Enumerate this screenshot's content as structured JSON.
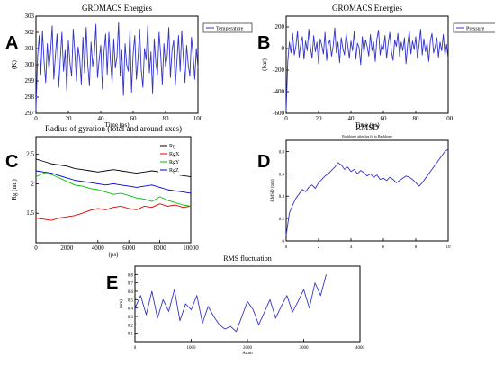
{
  "panels": [
    "A",
    "B",
    "C",
    "D",
    "E"
  ],
  "chart_data": [
    {
      "type": "line",
      "panel": "A",
      "title": "GROMACS Energies",
      "xlabel": "Time (ps)",
      "ylabel": "(K)",
      "xlim": [
        0,
        100
      ],
      "ylim": [
        297,
        303
      ],
      "xticks": [
        0,
        20,
        40,
        60,
        80,
        100
      ],
      "yticks": [
        297,
        298,
        299,
        300,
        301,
        302,
        303
      ],
      "legend_position": "top-right",
      "series": [
        {
          "name": "Temperature",
          "color": "#3333cc",
          "x": [
            0,
            1,
            2,
            3,
            4,
            5,
            6,
            7,
            8,
            9,
            10,
            11,
            12,
            13,
            14,
            15,
            16,
            17,
            18,
            19,
            20,
            21,
            22,
            23,
            24,
            25,
            26,
            27,
            28,
            29,
            30,
            31,
            32,
            33,
            34,
            35,
            36,
            37,
            38,
            39,
            40,
            41,
            42,
            43,
            44,
            45,
            46,
            47,
            48,
            49,
            50,
            51,
            52,
            53,
            54,
            55,
            56,
            57,
            58,
            59,
            60,
            61,
            62,
            63,
            64,
            65,
            66,
            67,
            68,
            69,
            70,
            71,
            72,
            73,
            74,
            75,
            76,
            77,
            78,
            79,
            80,
            81,
            82,
            83,
            84,
            85,
            86,
            87,
            88,
            89,
            90,
            91,
            92,
            93,
            94,
            95,
            96,
            97,
            98,
            99,
            100
          ],
          "y": [
            297.2,
            300.5,
            301.8,
            299.4,
            302.1,
            300.2,
            298.9,
            301.3,
            299.7,
            300.8,
            302.4,
            299.1,
            300.6,
            301.9,
            298.6,
            300.3,
            302.0,
            299.6,
            300.9,
            298.4,
            301.5,
            300.1,
            299.3,
            302.2,
            300.7,
            299.0,
            301.1,
            300.4,
            298.8,
            301.7,
            299.5,
            302.3,
            300.0,
            298.7,
            301.4,
            299.9,
            300.6,
            302.5,
            299.2,
            300.3,
            301.2,
            298.5,
            300.8,
            301.9,
            299.4,
            302.0,
            300.2,
            298.9,
            301.6,
            299.8,
            300.5,
            302.6,
            299.3,
            300.9,
            298.1,
            301.3,
            300.0,
            299.6,
            302.1,
            298.3,
            300.7,
            301.8,
            299.1,
            300.4,
            302.2,
            299.7,
            298.6,
            301.0,
            300.3,
            302.4,
            299.5,
            300.8,
            298.2,
            301.6,
            300.1,
            299.4,
            302.0,
            300.6,
            298.8,
            301.3,
            299.9,
            300.5,
            302.3,
            299.2,
            300.9,
            301.5,
            298.7,
            300.2,
            301.8,
            299.6,
            302.1,
            300.4,
            298.9,
            301.2,
            300.0,
            299.3,
            301.7,
            300.6,
            299.1,
            301.0,
            299.8
          ]
        }
      ]
    },
    {
      "type": "line",
      "panel": "B",
      "title": "GROMACS Energies",
      "xlabel": "Time (ps)",
      "ylabel": "(bar)",
      "xlim": [
        0,
        100
      ],
      "ylim": [
        -600,
        300
      ],
      "xticks": [
        0,
        20,
        40,
        60,
        80,
        100
      ],
      "yticks": [
        -600,
        -400,
        -200,
        0,
        200
      ],
      "legend_position": "top-right",
      "series": [
        {
          "name": "Pressure",
          "color": "#3333cc",
          "x": [
            0,
            1,
            2,
            3,
            4,
            5,
            6,
            7,
            8,
            9,
            10,
            11,
            12,
            13,
            14,
            15,
            16,
            17,
            18,
            19,
            20,
            21,
            22,
            23,
            24,
            25,
            26,
            27,
            28,
            29,
            30,
            31,
            32,
            33,
            34,
            35,
            36,
            37,
            38,
            39,
            40,
            41,
            42,
            43,
            44,
            45,
            46,
            47,
            48,
            49,
            50,
            51,
            52,
            53,
            54,
            55,
            56,
            57,
            58,
            59,
            60,
            61,
            62,
            63,
            64,
            65,
            66,
            67,
            68,
            69,
            70,
            71,
            72,
            73,
            74,
            75,
            76,
            77,
            78,
            79,
            80,
            81,
            82,
            83,
            84,
            85,
            86,
            87,
            88,
            89,
            90,
            91,
            92,
            93,
            94,
            95,
            96,
            97,
            98,
            99,
            100
          ],
          "y": [
            -580,
            -120,
            60,
            -40,
            140,
            -60,
            20,
            160,
            -80,
            40,
            110,
            -100,
            70,
            -20,
            180,
            10,
            -90,
            120,
            -30,
            60,
            -140,
            90,
            30,
            -50,
            150,
            -110,
            40,
            80,
            -70,
            20,
            190,
            -40,
            60,
            -130,
            100,
            0,
            -60,
            140,
            30,
            -90,
            70,
            -20,
            160,
            -100,
            50,
            10,
            -150,
            110,
            -40,
            80,
            20,
            -70,
            130,
            -20,
            60,
            -120,
            90,
            170,
            -60,
            40,
            -10,
            120,
            -90,
            50,
            150,
            -30,
            -110,
            80,
            20,
            140,
            -70,
            60,
            -20,
            100,
            -140,
            40,
            160,
            -50,
            70,
            -10,
            110,
            -90,
            30,
            180,
            -60,
            90,
            -30,
            50,
            -120,
            70,
            140,
            -40,
            20,
            100,
            -80,
            60,
            -20,
            130,
            -60,
            40,
            -100
          ]
        }
      ]
    },
    {
      "type": "line",
      "panel": "C",
      "title": "Radius of gyration (total and around axes)",
      "xlabel": "(ps)",
      "ylabel": "Rg (nm)",
      "xlim": [
        0,
        10000
      ],
      "ylim": [
        1.0,
        2.8
      ],
      "xticks": [
        0,
        2000,
        4000,
        6000,
        8000,
        10000
      ],
      "yticks": [
        1.5,
        2.0,
        2.5
      ],
      "legend_position": "top-right",
      "series": [
        {
          "name": "Rg",
          "color": "#000000",
          "x": [
            0,
            500,
            1000,
            1500,
            2000,
            2500,
            3000,
            3500,
            4000,
            4500,
            5000,
            5500,
            6000,
            6500,
            7000,
            7500,
            8000,
            8500,
            9000,
            9500,
            10000
          ],
          "y": [
            2.42,
            2.38,
            2.34,
            2.32,
            2.3,
            2.26,
            2.24,
            2.22,
            2.2,
            2.22,
            2.24,
            2.22,
            2.2,
            2.18,
            2.2,
            2.22,
            2.2,
            2.18,
            2.16,
            2.14,
            2.12
          ]
        },
        {
          "name": "RgX",
          "color": "#e00000",
          "x": [
            0,
            500,
            1000,
            1500,
            2000,
            2500,
            3000,
            3500,
            4000,
            4500,
            5000,
            5500,
            6000,
            6500,
            7000,
            7500,
            8000,
            8500,
            9000,
            9500,
            10000
          ],
          "y": [
            1.42,
            1.4,
            1.38,
            1.42,
            1.44,
            1.46,
            1.5,
            1.55,
            1.58,
            1.56,
            1.6,
            1.62,
            1.58,
            1.56,
            1.62,
            1.6,
            1.66,
            1.62,
            1.64,
            1.6,
            1.62
          ]
        },
        {
          "name": "RgY",
          "color": "#00c000",
          "x": [
            0,
            500,
            1000,
            1500,
            2000,
            2500,
            3000,
            3500,
            4000,
            4500,
            5000,
            5500,
            6000,
            6500,
            7000,
            7500,
            8000,
            8500,
            9000,
            9500,
            10000
          ],
          "y": [
            2.12,
            2.18,
            2.16,
            2.1,
            2.04,
            1.98,
            1.96,
            1.92,
            1.9,
            1.86,
            1.82,
            1.84,
            1.8,
            1.76,
            1.74,
            1.7,
            1.78,
            1.72,
            1.68,
            1.64,
            1.62
          ]
        },
        {
          "name": "RgZ",
          "color": "#0000d0",
          "x": [
            0,
            500,
            1000,
            1500,
            2000,
            2500,
            3000,
            3500,
            4000,
            4500,
            5000,
            5500,
            6000,
            6500,
            7000,
            7500,
            8000,
            8500,
            9000,
            9500,
            10000
          ],
          "y": [
            2.22,
            2.2,
            2.18,
            2.14,
            2.1,
            2.06,
            2.04,
            2.02,
            2.0,
            1.98,
            2.0,
            1.98,
            1.96,
            1.94,
            1.96,
            1.98,
            1.94,
            1.9,
            1.88,
            1.86,
            1.84
          ]
        }
      ]
    },
    {
      "type": "line",
      "panel": "D",
      "title": "RMSD",
      "subtitle": "Backbone after lsq fit to Backbone",
      "xlabel": "",
      "ylabel": "RMSD (nm)",
      "xlim": [
        0,
        10
      ],
      "ylim": [
        0,
        0.9
      ],
      "xticks": [
        0,
        2,
        4,
        6,
        8,
        10
      ],
      "yticks": [
        0,
        0.2,
        0.4,
        0.6,
        0.8
      ],
      "series": [
        {
          "color": "#3333cc",
          "x": [
            0,
            0.2,
            0.4,
            0.6,
            0.8,
            1,
            1.2,
            1.4,
            1.6,
            1.8,
            2,
            2.2,
            2.4,
            2.6,
            2.8,
            3,
            3.2,
            3.4,
            3.6,
            3.8,
            4,
            4.2,
            4.4,
            4.6,
            4.8,
            5,
            5.2,
            5.4,
            5.6,
            5.8,
            6,
            6.2,
            6.4,
            6.6,
            6.8,
            7,
            7.2,
            7.4,
            7.6,
            7.8,
            8,
            8.2,
            8.4,
            8.6,
            8.8,
            9,
            9.2,
            9.4,
            9.6,
            9.8,
            10
          ],
          "y": [
            0.05,
            0.25,
            0.32,
            0.38,
            0.42,
            0.46,
            0.44,
            0.48,
            0.5,
            0.47,
            0.52,
            0.55,
            0.58,
            0.6,
            0.63,
            0.66,
            0.7,
            0.68,
            0.64,
            0.66,
            0.62,
            0.64,
            0.6,
            0.63,
            0.61,
            0.58,
            0.6,
            0.57,
            0.59,
            0.55,
            0.56,
            0.54,
            0.57,
            0.55,
            0.52,
            0.54,
            0.56,
            0.58,
            0.57,
            0.55,
            0.52,
            0.49,
            0.52,
            0.56,
            0.6,
            0.64,
            0.68,
            0.72,
            0.76,
            0.8,
            0.82
          ]
        }
      ]
    },
    {
      "type": "line",
      "panel": "E",
      "title": "RMS fluctuation",
      "xlabel": "Atom",
      "ylabel": "(nm)",
      "xlim": [
        0,
        4000
      ],
      "ylim": [
        0,
        0.9
      ],
      "xticks": [
        0,
        1000,
        2000,
        3000,
        4000
      ],
      "yticks": [
        0.1,
        0.2,
        0.3,
        0.4,
        0.5,
        0.6,
        0.7,
        0.8
      ],
      "series": [
        {
          "color": "#3333cc",
          "x": [
            0,
            100,
            200,
            300,
            400,
            500,
            600,
            700,
            800,
            900,
            1000,
            1100,
            1200,
            1300,
            1400,
            1500,
            1600,
            1700,
            1800,
            1900,
            2000,
            2100,
            2200,
            2300,
            2400,
            2500,
            2600,
            2700,
            2800,
            2900,
            3000,
            3100,
            3200,
            3300,
            3400
          ],
          "y": [
            0.4,
            0.55,
            0.32,
            0.6,
            0.28,
            0.5,
            0.36,
            0.62,
            0.25,
            0.45,
            0.38,
            0.55,
            0.22,
            0.42,
            0.3,
            0.2,
            0.15,
            0.18,
            0.12,
            0.3,
            0.48,
            0.38,
            0.2,
            0.35,
            0.5,
            0.28,
            0.42,
            0.55,
            0.35,
            0.48,
            0.62,
            0.4,
            0.7,
            0.55,
            0.8
          ]
        }
      ]
    }
  ]
}
